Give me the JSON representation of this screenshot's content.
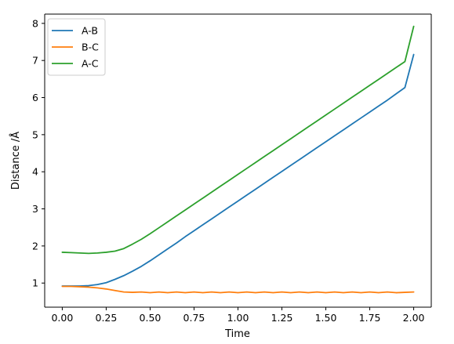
{
  "chart_data": {
    "type": "line",
    "title": "",
    "xlabel": "Time",
    "ylabel": "Distance /Å",
    "xlim": [
      -0.1,
      2.1
    ],
    "ylim": [
      0.35,
      8.25
    ],
    "xticks": [
      "0.00",
      "0.25",
      "0.50",
      "0.75",
      "1.00",
      "1.25",
      "1.50",
      "1.75",
      "2.00"
    ],
    "yticks": [
      "1",
      "2",
      "3",
      "4",
      "5",
      "6",
      "7",
      "8"
    ],
    "grid": false,
    "legend_position": "top-left",
    "x": [
      0,
      0.05,
      0.1,
      0.15,
      0.2,
      0.25,
      0.3,
      0.35,
      0.4,
      0.45,
      0.5,
      0.55,
      0.6,
      0.65,
      0.7,
      0.75,
      0.8,
      0.85,
      0.9,
      0.95,
      1.0,
      1.05,
      1.1,
      1.15,
      1.2,
      1.25,
      1.3,
      1.35,
      1.4,
      1.45,
      1.5,
      1.55,
      1.6,
      1.65,
      1.7,
      1.75,
      1.8,
      1.85,
      1.9,
      1.95,
      2.0
    ],
    "series": [
      {
        "name": "A-B",
        "color": "#1f77b4",
        "values": [
          0.92,
          0.92,
          0.92,
          0.93,
          0.96,
          1.01,
          1.1,
          1.2,
          1.32,
          1.45,
          1.6,
          1.76,
          1.92,
          2.08,
          2.25,
          2.41,
          2.57,
          2.73,
          2.89,
          3.05,
          3.21,
          3.37,
          3.53,
          3.69,
          3.85,
          4.01,
          4.17,
          4.33,
          4.49,
          4.65,
          4.81,
          4.97,
          5.13,
          5.29,
          5.45,
          5.61,
          5.77,
          5.93,
          6.1,
          6.27,
          7.16
        ]
      },
      {
        "name": "B-C",
        "color": "#ff7f0e",
        "values": [
          0.91,
          0.91,
          0.9,
          0.89,
          0.87,
          0.84,
          0.8,
          0.76,
          0.75,
          0.76,
          0.74,
          0.76,
          0.74,
          0.76,
          0.74,
          0.76,
          0.74,
          0.76,
          0.74,
          0.76,
          0.74,
          0.76,
          0.74,
          0.76,
          0.74,
          0.76,
          0.74,
          0.76,
          0.74,
          0.76,
          0.74,
          0.76,
          0.74,
          0.76,
          0.74,
          0.76,
          0.74,
          0.76,
          0.74,
          0.75,
          0.76
        ]
      },
      {
        "name": "A-C",
        "color": "#2ca02c",
        "values": [
          1.83,
          1.82,
          1.81,
          1.8,
          1.81,
          1.83,
          1.86,
          1.93,
          2.05,
          2.18,
          2.33,
          2.49,
          2.65,
          2.81,
          2.97,
          3.13,
          3.29,
          3.45,
          3.61,
          3.77,
          3.93,
          4.09,
          4.25,
          4.41,
          4.57,
          4.73,
          4.89,
          5.05,
          5.21,
          5.37,
          5.53,
          5.69,
          5.85,
          6.01,
          6.17,
          6.33,
          6.49,
          6.65,
          6.81,
          6.97,
          7.92
        ]
      }
    ]
  }
}
